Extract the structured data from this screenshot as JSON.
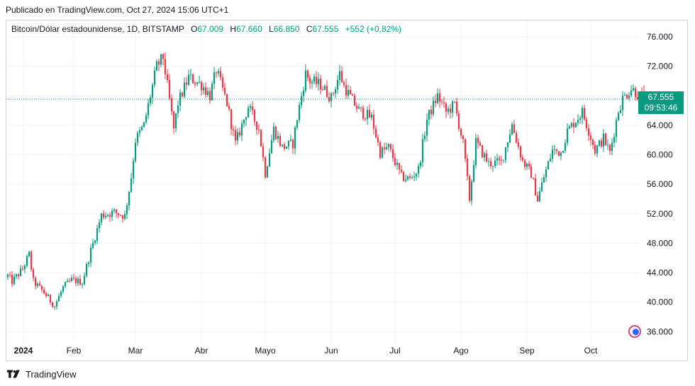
{
  "header": {
    "published": "Publicado en TradingView.com, Oct 27, 2024 15:06 UTC+1"
  },
  "legend": {
    "symbol": "Bitcoin/Dólar estadounidense, 1D, BITSTAMP",
    "open_label": "O",
    "open": "67.009",
    "high_label": "H",
    "high": "67.660",
    "low_label": "L",
    "low": "66.850",
    "close_label": "C",
    "close": "67.555",
    "change": "+552 (+0,82%)"
  },
  "price_tag": {
    "price": "67.555",
    "countdown": "09:53:46"
  },
  "footer": {
    "brand": "TradingView"
  },
  "colors": {
    "up": "#089981",
    "down": "#f23645",
    "grid": "#f0f3fa",
    "text": "#131722",
    "last_price_line": "#089981"
  },
  "icons": [
    "tradingview-logo-icon",
    "globe-icon"
  ],
  "chart_data": {
    "type": "candlestick",
    "y_axis_ticks": [
      "76.000",
      "72.000",
      "68.000",
      "64.000",
      "60.000",
      "56.000",
      "52.000",
      "48.000",
      "44.000",
      "40.000",
      "36.000"
    ],
    "x_axis_ticks": [
      "2024",
      "Feb",
      "Mar",
      "Abr",
      "Mayo",
      "Jun",
      "Jul",
      "Ago",
      "Sep",
      "Oct"
    ],
    "ylim": [
      34500,
      78200
    ],
    "last_price": 67555,
    "grid": true,
    "close_path": [
      [
        "2024-01-01",
        43600
      ],
      [
        "2024-01-03",
        42800
      ],
      [
        "2024-01-08",
        44500
      ],
      [
        "2024-01-11",
        46500
      ],
      [
        "2024-01-13",
        42800
      ],
      [
        "2024-01-18",
        41300
      ],
      [
        "2024-01-23",
        39500
      ],
      [
        "2024-01-27",
        42000
      ],
      [
        "2024-01-31",
        43000
      ],
      [
        "2024-02-05",
        42700
      ],
      [
        "2024-02-09",
        47000
      ],
      [
        "2024-02-14",
        51800
      ],
      [
        "2024-02-20",
        52200
      ],
      [
        "2024-02-25",
        51700
      ],
      [
        "2024-02-28",
        57000
      ],
      [
        "2024-03-01",
        62000
      ],
      [
        "2024-03-05",
        64000
      ],
      [
        "2024-03-08",
        68000
      ],
      [
        "2024-03-11",
        72000
      ],
      [
        "2024-03-14",
        73200
      ],
      [
        "2024-03-19",
        63500
      ],
      [
        "2024-03-21",
        67000
      ],
      [
        "2024-03-26",
        70500
      ],
      [
        "2024-04-01",
        69500
      ],
      [
        "2024-04-05",
        68000
      ],
      [
        "2024-04-08",
        71500
      ],
      [
        "2024-04-13",
        67000
      ],
      [
        "2024-04-17",
        61500
      ],
      [
        "2024-04-20",
        64000
      ],
      [
        "2024-04-23",
        66500
      ],
      [
        "2024-04-28",
        63500
      ],
      [
        "2024-05-01",
        57500
      ],
      [
        "2024-05-05",
        63500
      ],
      [
        "2024-05-09",
        61000
      ],
      [
        "2024-05-14",
        61500
      ],
      [
        "2024-05-16",
        65000
      ],
      [
        "2024-05-20",
        71000
      ],
      [
        "2024-05-22",
        70000
      ],
      [
        "2024-05-27",
        69500
      ],
      [
        "2024-06-01",
        67700
      ],
      [
        "2024-06-05",
        71000
      ],
      [
        "2024-06-07",
        69300
      ],
      [
        "2024-06-11",
        67300
      ],
      [
        "2024-06-14",
        66000
      ],
      [
        "2024-06-20",
        65000
      ],
      [
        "2024-06-24",
        60300
      ],
      [
        "2024-06-28",
        61000
      ],
      [
        "2024-07-04",
        57000
      ],
      [
        "2024-07-08",
        56700
      ],
      [
        "2024-07-12",
        58000
      ],
      [
        "2024-07-16",
        64800
      ],
      [
        "2024-07-21",
        68000
      ],
      [
        "2024-07-25",
        65800
      ],
      [
        "2024-07-29",
        66800
      ],
      [
        "2024-08-02",
        61500
      ],
      [
        "2024-08-05",
        54000
      ],
      [
        "2024-08-08",
        61700
      ],
      [
        "2024-08-14",
        58800
      ],
      [
        "2024-08-20",
        59000
      ],
      [
        "2024-08-25",
        64100
      ],
      [
        "2024-08-30",
        59100
      ],
      [
        "2024-09-03",
        57400
      ],
      [
        "2024-09-06",
        53900
      ],
      [
        "2024-09-09",
        57000
      ],
      [
        "2024-09-13",
        60600
      ],
      [
        "2024-09-17",
        60300
      ],
      [
        "2024-09-20",
        63200
      ],
      [
        "2024-09-27",
        65800
      ],
      [
        "2024-09-30",
        63300
      ],
      [
        "2024-10-03",
        60600
      ],
      [
        "2024-10-07",
        62200
      ],
      [
        "2024-10-10",
        60300
      ],
      [
        "2024-10-14",
        66000
      ],
      [
        "2024-10-16",
        67600
      ],
      [
        "2024-10-20",
        69000
      ],
      [
        "2024-10-24",
        68000
      ],
      [
        "2024-10-27",
        67555
      ]
    ]
  }
}
